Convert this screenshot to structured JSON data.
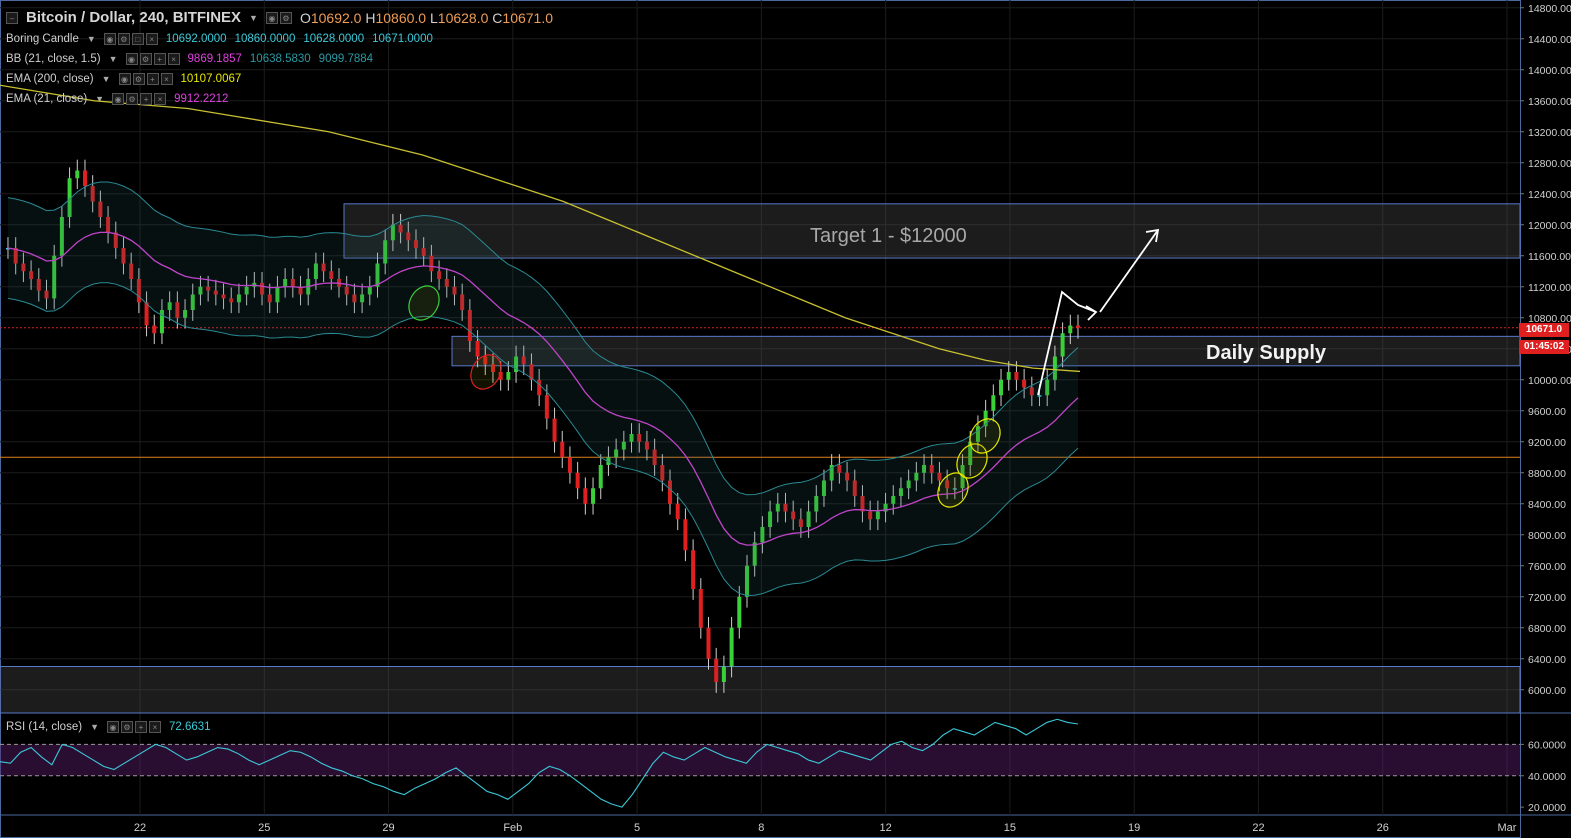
{
  "header": {
    "symbol": "Bitcoin / Dollar, 240, BITFINEX",
    "ohlc": [
      {
        "k": "O",
        "v": "10692.0"
      },
      {
        "k": "H",
        "v": "10860.0"
      },
      {
        "k": "L",
        "v": "10628.0"
      },
      {
        "k": "C",
        "v": "10671.0"
      }
    ]
  },
  "indicators": [
    {
      "label": "Boring Candle",
      "values": [
        "10692.0000",
        "10860.0000",
        "10628.0000",
        "10671.0000"
      ],
      "color": "#3cc8d8"
    },
    {
      "label": "BB (21, close, 1.5)",
      "values": [
        "9869.1857",
        "10638.5830",
        "9099.7884"
      ],
      "color": "#e040e0"
    },
    {
      "label": "EMA (200, close)",
      "values": [
        "10107.0067"
      ],
      "color": "#e8e800"
    },
    {
      "label": "EMA (21, close)",
      "values": [
        "9912.2212"
      ],
      "color": "#e040e0"
    }
  ],
  "rsi_legend": {
    "label": "RSI (14, close)",
    "value": "72.6631"
  },
  "annotations": {
    "target": "Target 1 - $12000",
    "supply": "Daily Supply"
  },
  "price_tags": {
    "last": "10671.0",
    "countdown": "01:45:02"
  },
  "colors": {
    "up": "#3ad03a",
    "down": "#e02020",
    "doji": "#3cc8d8",
    "bb": "#2a8a93",
    "ema200": "#c8c030",
    "ema21": "#e040e0",
    "rsi": "#3cc8d8",
    "hline": "#e08020",
    "zone": "#5a78c8"
  },
  "chart_data": [
    {
      "type": "line",
      "title": "Bitcoin / Dollar, 240, BITFINEX",
      "x_ticks": [
        "22",
        "25",
        "29",
        "Feb",
        "5",
        "8",
        "12",
        "15",
        "19",
        "22",
        "26",
        "Mar"
      ],
      "ylim": [
        5700,
        14900
      ],
      "y_ticks": [
        "14800.00",
        "14400.00",
        "14000.00",
        "13600.00",
        "13200.00",
        "12800.00",
        "12400.00",
        "12000.00",
        "11600.00",
        "11200.00",
        "10800.00",
        "10400.00",
        "10000.00",
        "9600.00",
        "9200.00",
        "8800.00",
        "8400.00",
        "8000.00",
        "7600.00",
        "7200.00",
        "6800.00",
        "6400.00",
        "6000.00"
      ],
      "zones": [
        {
          "name": "Target 1 - $12000",
          "y1": 11570,
          "y2": 12270
        },
        {
          "name": "Daily Supply",
          "y1": 10180,
          "y2": 10560
        },
        {
          "name": "",
          "y1": 5700,
          "y2": 6300
        }
      ],
      "horizontal_line": 9000,
      "last_price": 10671,
      "candles_close": [
        11700,
        11500,
        11400,
        11300,
        11150,
        11050,
        11600,
        12100,
        12600,
        12700,
        12500,
        12300,
        12100,
        11900,
        11700,
        11500,
        11300,
        11000,
        10700,
        10600,
        10900,
        11000,
        10800,
        10900,
        11100,
        11200,
        11150,
        11100,
        11050,
        11000,
        11100,
        11200,
        11250,
        11100,
        11000,
        11200,
        11300,
        11200,
        11100,
        11300,
        11500,
        11400,
        11300,
        11200,
        11100,
        11000,
        11100,
        11200,
        11500,
        11800,
        12000,
        11900,
        11800,
        11700,
        11600,
        11400,
        11300,
        11200,
        11100,
        10900,
        10500,
        10300,
        10200,
        10100,
        10000,
        10100,
        10300,
        10200,
        10000,
        9800,
        9500,
        9200,
        9000,
        8800,
        8600,
        8400,
        8600,
        8900,
        9000,
        9100,
        9200,
        9300,
        9200,
        9100,
        8900,
        8700,
        8400,
        8200,
        7800,
        7300,
        6800,
        6400,
        6100,
        6300,
        6800,
        7200,
        7600,
        7900,
        8100,
        8300,
        8400,
        8300,
        8200,
        8100,
        8300,
        8500,
        8700,
        8900,
        8800,
        8700,
        8500,
        8300,
        8200,
        8300,
        8400,
        8500,
        8600,
        8700,
        8800,
        8900,
        8800,
        8700,
        8600,
        8600,
        8900,
        9200,
        9400,
        9600,
        9800,
        10000,
        10100,
        10000,
        9900,
        9800,
        9800,
        10000,
        10300,
        10600,
        10700,
        10671
      ],
      "ema200": [
        13800,
        13700,
        13600,
        13550,
        13500,
        13400,
        13300,
        13200,
        13050,
        12900,
        12700,
        12500,
        12300,
        12050,
        11800,
        11550,
        11300,
        11050,
        10800,
        10600,
        10400,
        10250,
        10150,
        10107
      ],
      "series": [
        {
          "name": "EMA (200, close)",
          "values": [
            13800,
            13700,
            13600,
            13550,
            13500,
            13400,
            13300,
            13200,
            13050,
            12900,
            12700,
            12500,
            12300,
            12050,
            11800,
            11550,
            11300,
            11050,
            10800,
            10600,
            10400,
            10250,
            10150,
            10107
          ]
        }
      ]
    },
    {
      "type": "line",
      "title": "RSI (14, close)",
      "ylim": [
        15,
        80
      ],
      "y_ticks": [
        "60.0000",
        "40.0000",
        "20.0000"
      ],
      "bands": [
        40,
        60
      ],
      "series": [
        {
          "name": "RSI (14, close)",
          "values": [
            49,
            48,
            55,
            58,
            52,
            47,
            60,
            58,
            54,
            50,
            46,
            44,
            48,
            52,
            56,
            60,
            58,
            54,
            50,
            52,
            55,
            58,
            57,
            54,
            50,
            47,
            50,
            53,
            56,
            55,
            52,
            48,
            45,
            43,
            40,
            38,
            35,
            33,
            30,
            28,
            32,
            35,
            38,
            42,
            45,
            40,
            35,
            30,
            28,
            25,
            30,
            35,
            42,
            46,
            44,
            40,
            35,
            30,
            25,
            22,
            20,
            28,
            38,
            48,
            55,
            52,
            50,
            54,
            58,
            55,
            52,
            50,
            48,
            55,
            60,
            58,
            56,
            54,
            50,
            48,
            52,
            56,
            54,
            52,
            50,
            55,
            60,
            62,
            58,
            56,
            60,
            66,
            70,
            68,
            66,
            70,
            74,
            72,
            70,
            66,
            70,
            74,
            76,
            74,
            73
          ]
        }
      ]
    }
  ]
}
